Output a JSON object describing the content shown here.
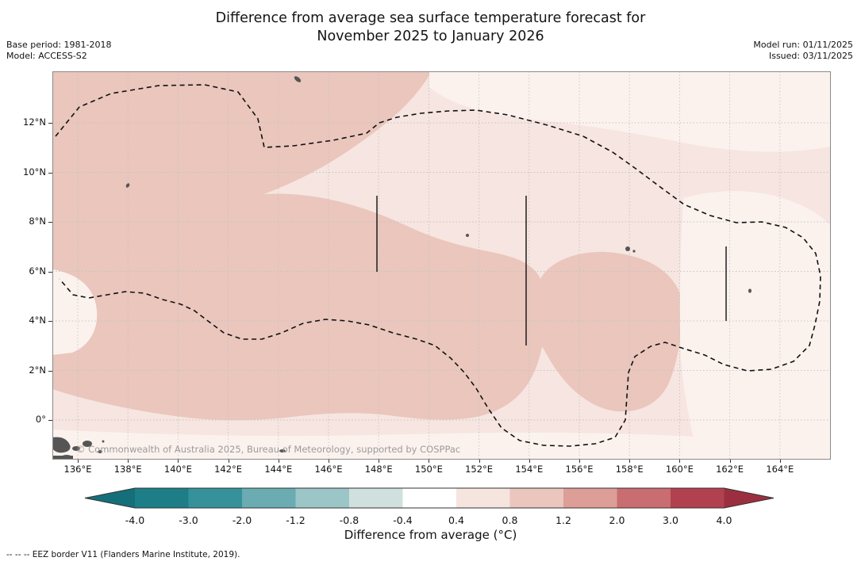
{
  "header": {
    "title_line1": "Difference from average sea surface temperature forecast for",
    "title_line2": "November 2025 to January 2026",
    "base_period": "Base period: 1981-2018",
    "model": "Model: ACCESS-S2",
    "model_run": "Model run: 01/11/2025",
    "issued": "Issued: 03/11/2025"
  },
  "map": {
    "watermark": "© Commonwealth of Australia 2025, Bureau of Meteorology, supported by COSPPac",
    "x_ticks": [
      "136°E",
      "138°E",
      "140°E",
      "142°E",
      "144°E",
      "146°E",
      "148°E",
      "150°E",
      "152°E",
      "154°E",
      "156°E",
      "158°E",
      "160°E",
      "162°E",
      "164°E"
    ],
    "y_ticks": [
      "12°N",
      "10°N",
      "8°N",
      "6°N",
      "4°N",
      "2°N",
      "0°"
    ],
    "colors": {
      "light": "#f6e5e0",
      "lighter": "#fbf2ee",
      "medium": "#eac6bd",
      "land": "#555555"
    }
  },
  "colorbar": {
    "label": "Difference from average (°C)",
    "tick_labels": [
      "-4.0",
      "-3.0",
      "-2.0",
      "-1.2",
      "-0.8",
      "-0.4",
      "0.4",
      "0.8",
      "1.2",
      "2.0",
      "3.0",
      "4.0"
    ],
    "segment_colors": [
      "#1e7e88",
      "#35929b",
      "#6aacb2",
      "#9cc5c7",
      "#cfe0df",
      "#ffffff",
      "#f6e4df",
      "#eac6be",
      "#dd9e98",
      "#c96d72",
      "#b2414f"
    ],
    "arrow_left_color": "#156f7a",
    "arrow_right_color": "#9c2f3f"
  },
  "footer": {
    "eez_note": "--  --  -- EEZ border V11 (Flanders Marine Institute, 2019)."
  },
  "chart_data": {
    "type": "heatmap",
    "subtype": "filled_contour_map",
    "title": "Difference from average sea surface temperature forecast for November 2025 to January 2026",
    "base_period": "1981-2018",
    "model": "ACCESS-S2",
    "model_run": "01/11/2025",
    "issued": "03/11/2025",
    "xlabel": "",
    "ylabel": "",
    "x_tick_labels": [
      "136°E",
      "138°E",
      "140°E",
      "142°E",
      "144°E",
      "146°E",
      "148°E",
      "150°E",
      "152°E",
      "154°E",
      "156°E",
      "158°E",
      "160°E",
      "162°E",
      "164°E"
    ],
    "y_tick_labels": [
      "12°N",
      "10°N",
      "8°N",
      "6°N",
      "4°N",
      "2°N",
      "0°"
    ],
    "x_range_deg_east": [
      135,
      166
    ],
    "y_range_deg_north": [
      -1.6,
      14.1
    ],
    "colorbar": {
      "label": "Difference from average (°C)",
      "levels": [
        -4.0,
        -3.0,
        -2.0,
        -1.2,
        -0.8,
        -0.4,
        0.4,
        0.8,
        1.2,
        2.0,
        3.0,
        4.0
      ],
      "units": "°C",
      "extend": "both"
    },
    "visible_anomaly_summary": [
      {
        "band_degC": "0.8 to 1.2",
        "where": "broad warm band across the west and centre of the region, roughly 135°E-160°E between 0° and 12°N"
      },
      {
        "band_degC": "0.4 to 0.8",
        "where": "most of the remaining region (top band, east, and bottom strip)"
      },
      {
        "band_degC": "-0.4 to 0.4",
        "where": "small near-neutral patches at the far east and along map edges"
      }
    ],
    "overlays": [
      "dashed EEZ border loop (EEZ border V11)",
      "solid black meridional EEZ segment lines near 148°E (6°N-9°N), 154°E (3°N-9°N), 162°E (4°N-7°N)",
      "small island land masses (e.g. Guam area, Micronesia islands, New Guinea coast bottom-left)"
    ]
  }
}
